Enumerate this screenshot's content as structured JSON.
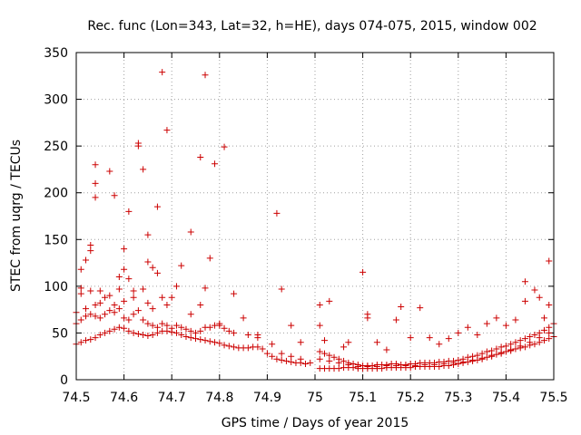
{
  "chart_data": {
    "type": "scatter",
    "title": "Rec. func (Lon=343, Lat=32, h=HE), days 074-075, 2015, window 002",
    "xlabel": "GPS time / Days of year 2015",
    "ylabel": "STEC from uqrg / TECUs",
    "xlim": [
      74.5,
      75.5
    ],
    "ylim": [
      0,
      350
    ],
    "xticks": [
      "74.5",
      "74.6",
      "74.7",
      "74.8",
      "74.9",
      "75",
      "75.1",
      "75.2",
      "75.3",
      "75.4",
      "75.5"
    ],
    "yticks": [
      "0",
      "50",
      "100",
      "150",
      "200",
      "250",
      "300",
      "350"
    ],
    "grid": true,
    "marker": "plus",
    "color": "#cc0000",
    "series": [
      {
        "points": [
          [
            74.5,
            38
          ],
          [
            74.51,
            40
          ],
          [
            74.52,
            42
          ],
          [
            74.53,
            43
          ],
          [
            74.54,
            45
          ],
          [
            74.55,
            48
          ],
          [
            74.56,
            50
          ],
          [
            74.57,
            52
          ],
          [
            74.58,
            54
          ],
          [
            74.59,
            56
          ],
          [
            74.6,
            55
          ],
          [
            74.61,
            52
          ],
          [
            74.62,
            50
          ],
          [
            74.63,
            49
          ],
          [
            74.64,
            48
          ],
          [
            74.65,
            47
          ],
          [
            74.66,
            48
          ],
          [
            74.67,
            50
          ],
          [
            74.68,
            52
          ],
          [
            74.69,
            52
          ],
          [
            74.7,
            51
          ],
          [
            74.71,
            50
          ],
          [
            74.72,
            48
          ],
          [
            74.73,
            46
          ],
          [
            74.74,
            45
          ],
          [
            74.75,
            44
          ],
          [
            74.76,
            43
          ],
          [
            74.77,
            42
          ],
          [
            74.78,
            41
          ],
          [
            74.79,
            40
          ],
          [
            74.8,
            39
          ],
          [
            74.81,
            37
          ],
          [
            74.82,
            36
          ],
          [
            74.83,
            35
          ],
          [
            74.84,
            34
          ],
          [
            74.85,
            34
          ],
          [
            74.86,
            34
          ],
          [
            74.87,
            35
          ],
          [
            74.88,
            35
          ],
          [
            74.89,
            33
          ],
          [
            74.9,
            28
          ],
          [
            74.91,
            25
          ],
          [
            74.92,
            22
          ],
          [
            74.93,
            21
          ],
          [
            74.94,
            20
          ],
          [
            74.95,
            19
          ],
          [
            74.96,
            18
          ],
          [
            74.97,
            18
          ],
          [
            74.98,
            17
          ],
          [
            74.99,
            18
          ],
          [
            75.01,
            12
          ],
          [
            75.02,
            12
          ],
          [
            75.03,
            12
          ],
          [
            75.04,
            12
          ],
          [
            75.05,
            12
          ],
          [
            75.06,
            13
          ],
          [
            75.07,
            13
          ],
          [
            75.08,
            13
          ],
          [
            75.09,
            12
          ],
          [
            75.1,
            12
          ],
          [
            75.11,
            12
          ],
          [
            75.12,
            12
          ],
          [
            75.13,
            12
          ],
          [
            75.14,
            12
          ],
          [
            75.15,
            13
          ],
          [
            75.16,
            13
          ],
          [
            75.17,
            13
          ],
          [
            75.18,
            13
          ],
          [
            75.19,
            13
          ],
          [
            75.2,
            13
          ],
          [
            75.21,
            14
          ],
          [
            75.22,
            14
          ],
          [
            75.23,
            14
          ],
          [
            75.24,
            14
          ],
          [
            75.25,
            14
          ],
          [
            75.26,
            14
          ],
          [
            75.27,
            15
          ],
          [
            75.28,
            15
          ],
          [
            75.29,
            16
          ],
          [
            75.3,
            17
          ],
          [
            75.31,
            18
          ],
          [
            75.32,
            19
          ],
          [
            75.33,
            20
          ],
          [
            75.34,
            21
          ],
          [
            75.35,
            22
          ],
          [
            75.36,
            24
          ],
          [
            75.37,
            25
          ],
          [
            75.38,
            27
          ],
          [
            75.39,
            28
          ],
          [
            75.4,
            30
          ],
          [
            75.41,
            31
          ],
          [
            75.42,
            33
          ],
          [
            75.43,
            34
          ],
          [
            75.44,
            35
          ],
          [
            75.45,
            37
          ],
          [
            75.46,
            38
          ],
          [
            75.47,
            40
          ],
          [
            75.48,
            42
          ],
          [
            75.49,
            44
          ],
          [
            75.5,
            46
          ]
        ]
      },
      {
        "points": [
          [
            74.5,
            60
          ],
          [
            74.51,
            64
          ],
          [
            74.52,
            68
          ],
          [
            74.53,
            70
          ],
          [
            74.54,
            68
          ],
          [
            74.55,
            66
          ],
          [
            74.56,
            70
          ],
          [
            74.57,
            74
          ],
          [
            74.58,
            72
          ],
          [
            74.59,
            76
          ],
          [
            74.6,
            66
          ],
          [
            74.61,
            64
          ],
          [
            74.62,
            70
          ],
          [
            74.63,
            74
          ],
          [
            74.64,
            64
          ],
          [
            74.65,
            60
          ],
          [
            74.66,
            58
          ],
          [
            74.67,
            56
          ],
          [
            74.68,
            60
          ],
          [
            74.69,
            58
          ],
          [
            74.7,
            55
          ],
          [
            74.71,
            58
          ],
          [
            74.72,
            56
          ],
          [
            74.73,
            54
          ],
          [
            74.74,
            52
          ],
          [
            74.75,
            50
          ],
          [
            74.76,
            52
          ],
          [
            74.77,
            56
          ],
          [
            74.78,
            56
          ],
          [
            74.79,
            58
          ],
          [
            74.8,
            58
          ],
          [
            74.81,
            55
          ],
          [
            74.82,
            52
          ],
          [
            74.83,
            50
          ],
          [
            74.86,
            48
          ],
          [
            74.88,
            45
          ],
          [
            74.91,
            38
          ],
          [
            74.93,
            28
          ],
          [
            74.95,
            25
          ],
          [
            74.97,
            22
          ],
          [
            75.01,
            30
          ],
          [
            75.02,
            28
          ],
          [
            75.03,
            26
          ],
          [
            75.04,
            24
          ],
          [
            75.05,
            22
          ],
          [
            75.06,
            20
          ],
          [
            75.07,
            18
          ],
          [
            75.08,
            17
          ],
          [
            75.09,
            16
          ],
          [
            75.1,
            15
          ],
          [
            75.11,
            15
          ],
          [
            75.12,
            15
          ],
          [
            75.13,
            16
          ],
          [
            75.14,
            16
          ],
          [
            75.15,
            16
          ],
          [
            75.16,
            17
          ],
          [
            75.17,
            17
          ],
          [
            75.18,
            16
          ],
          [
            75.19,
            16
          ],
          [
            75.2,
            17
          ],
          [
            75.21,
            17
          ],
          [
            75.22,
            18
          ],
          [
            75.23,
            18
          ],
          [
            75.24,
            18
          ],
          [
            75.25,
            18
          ],
          [
            75.26,
            19
          ],
          [
            75.27,
            19
          ],
          [
            75.28,
            20
          ],
          [
            75.29,
            20
          ],
          [
            75.3,
            21
          ],
          [
            75.31,
            22
          ],
          [
            75.32,
            24
          ],
          [
            75.33,
            25
          ],
          [
            75.34,
            26
          ],
          [
            75.35,
            28
          ],
          [
            75.36,
            30
          ],
          [
            75.37,
            31
          ],
          [
            75.38,
            33
          ],
          [
            75.39,
            35
          ],
          [
            75.4,
            36
          ],
          [
            75.41,
            38
          ],
          [
            75.42,
            40
          ],
          [
            75.43,
            42
          ],
          [
            75.44,
            44
          ],
          [
            75.45,
            46
          ],
          [
            75.46,
            48
          ],
          [
            75.47,
            50
          ],
          [
            75.48,
            53
          ],
          [
            75.49,
            56
          ],
          [
            75.5,
            60
          ],
          [
            75.01,
            22
          ],
          [
            75.03,
            20
          ],
          [
            75.05,
            18
          ],
          [
            75.07,
            16
          ],
          [
            75.09,
            14
          ],
          [
            75.11,
            14
          ],
          [
            75.13,
            14
          ],
          [
            75.15,
            15
          ],
          [
            75.17,
            15
          ],
          [
            75.19,
            15
          ],
          [
            75.21,
            15
          ],
          [
            75.23,
            16
          ],
          [
            75.25,
            16
          ],
          [
            75.27,
            17
          ],
          [
            75.29,
            18
          ],
          [
            75.31,
            19
          ],
          [
            75.33,
            21
          ],
          [
            75.35,
            23
          ],
          [
            75.37,
            26
          ],
          [
            75.39,
            29
          ],
          [
            75.41,
            32
          ],
          [
            75.43,
            36
          ],
          [
            75.45,
            40
          ],
          [
            75.47,
            45
          ],
          [
            75.49,
            50
          ]
        ]
      },
      {
        "points": [
          [
            74.5,
            72
          ],
          [
            74.51,
            92
          ],
          [
            74.51,
            98
          ],
          [
            74.51,
            118
          ],
          [
            74.52,
            76
          ],
          [
            74.52,
            128
          ],
          [
            74.53,
            138
          ],
          [
            74.53,
            144
          ],
          [
            74.53,
            95
          ],
          [
            74.54,
            80
          ],
          [
            74.54,
            195
          ],
          [
            74.54,
            210
          ],
          [
            74.54,
            230
          ],
          [
            74.55,
            82
          ],
          [
            74.55,
            95
          ],
          [
            74.56,
            88
          ],
          [
            74.57,
            223
          ],
          [
            74.57,
            90
          ],
          [
            74.58,
            80
          ],
          [
            74.58,
            197
          ],
          [
            74.59,
            97
          ],
          [
            74.59,
            110
          ],
          [
            74.6,
            140
          ],
          [
            74.6,
            118
          ],
          [
            74.6,
            84
          ],
          [
            74.61,
            180
          ],
          [
            74.61,
            108
          ],
          [
            74.62,
            95
          ],
          [
            74.62,
            88
          ],
          [
            74.63,
            250
          ],
          [
            74.63,
            253
          ],
          [
            74.64,
            225
          ],
          [
            74.64,
            97
          ],
          [
            74.65,
            155
          ],
          [
            74.65,
            126
          ],
          [
            74.65,
            82
          ],
          [
            74.66,
            120
          ],
          [
            74.66,
            76
          ],
          [
            74.67,
            185
          ],
          [
            74.67,
            114
          ],
          [
            74.68,
            329
          ],
          [
            74.68,
            88
          ],
          [
            74.69,
            267
          ],
          [
            74.69,
            80
          ],
          [
            74.7,
            88
          ],
          [
            74.71,
            100
          ],
          [
            74.72,
            122
          ],
          [
            74.74,
            158
          ],
          [
            74.74,
            70
          ],
          [
            74.76,
            238
          ],
          [
            74.76,
            80
          ],
          [
            74.77,
            326
          ],
          [
            74.77,
            98
          ],
          [
            74.78,
            130
          ],
          [
            74.79,
            231
          ],
          [
            74.8,
            60
          ],
          [
            74.81,
            249
          ],
          [
            74.83,
            92
          ],
          [
            74.85,
            66
          ],
          [
            74.88,
            48
          ],
          [
            74.92,
            178
          ],
          [
            74.93,
            97
          ],
          [
            74.95,
            58
          ],
          [
            74.97,
            40
          ],
          [
            75.01,
            80
          ],
          [
            75.01,
            58
          ],
          [
            75.03,
            84
          ],
          [
            75.02,
            42
          ],
          [
            75.06,
            35
          ],
          [
            75.07,
            40
          ],
          [
            75.1,
            115
          ],
          [
            75.11,
            70
          ],
          [
            75.11,
            66
          ],
          [
            75.13,
            40
          ],
          [
            75.15,
            32
          ],
          [
            75.17,
            64
          ],
          [
            75.18,
            78
          ],
          [
            75.2,
            45
          ],
          [
            75.22,
            77
          ],
          [
            75.24,
            45
          ],
          [
            75.26,
            38
          ],
          [
            75.28,
            44
          ],
          [
            75.3,
            50
          ],
          [
            75.32,
            56
          ],
          [
            75.34,
            48
          ],
          [
            75.36,
            60
          ],
          [
            75.38,
            66
          ],
          [
            75.4,
            58
          ],
          [
            75.42,
            64
          ],
          [
            75.44,
            84
          ],
          [
            75.44,
            105
          ],
          [
            75.46,
            96
          ],
          [
            75.47,
            88
          ],
          [
            75.48,
            66
          ],
          [
            75.49,
            80
          ],
          [
            75.49,
            127
          ]
        ]
      }
    ]
  }
}
